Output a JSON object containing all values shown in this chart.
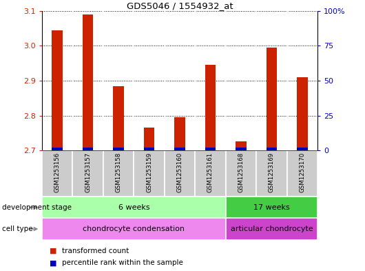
{
  "title": "GDS5046 / 1554932_at",
  "samples": [
    "GSM1253156",
    "GSM1253157",
    "GSM1253158",
    "GSM1253159",
    "GSM1253160",
    "GSM1253161",
    "GSM1253168",
    "GSM1253169",
    "GSM1253170"
  ],
  "red_values": [
    3.045,
    3.09,
    2.885,
    2.765,
    2.795,
    2.945,
    2.725,
    2.995,
    2.91
  ],
  "blue_values": [
    2,
    2,
    2,
    2,
    2,
    2,
    2,
    2,
    2
  ],
  "y_min": 2.7,
  "y_max": 3.1,
  "y_ticks_left": [
    2.7,
    2.8,
    2.9,
    3.0,
    3.1
  ],
  "y_ticks_right": [
    0,
    25,
    50,
    75,
    100
  ],
  "y_ticks_right_labels": [
    "0",
    "25",
    "50",
    "75",
    "100%"
  ],
  "bar_width": 0.35,
  "red_color": "#cc2200",
  "blue_color": "#0000bb",
  "dev_stage_groups": [
    {
      "label": "6 weeks",
      "start": 0,
      "end": 5,
      "color": "#aaffaa"
    },
    {
      "label": "17 weeks",
      "start": 6,
      "end": 8,
      "color": "#44cc44"
    }
  ],
  "cell_type_groups": [
    {
      "label": "chondrocyte condensation",
      "start": 0,
      "end": 5,
      "color": "#ee88ee"
    },
    {
      "label": "articular chondrocyte",
      "start": 6,
      "end": 8,
      "color": "#cc44cc"
    }
  ],
  "dev_stage_label": "development stage",
  "cell_type_label": "cell type",
  "legend_red": "transformed count",
  "legend_blue": "percentile rank within the sample",
  "sample_bg_color": "#cccccc",
  "left_tick_color": "#cc2200",
  "right_tick_color": "#0000bb",
  "fig_width": 5.3,
  "fig_height": 3.93,
  "dpi": 100
}
